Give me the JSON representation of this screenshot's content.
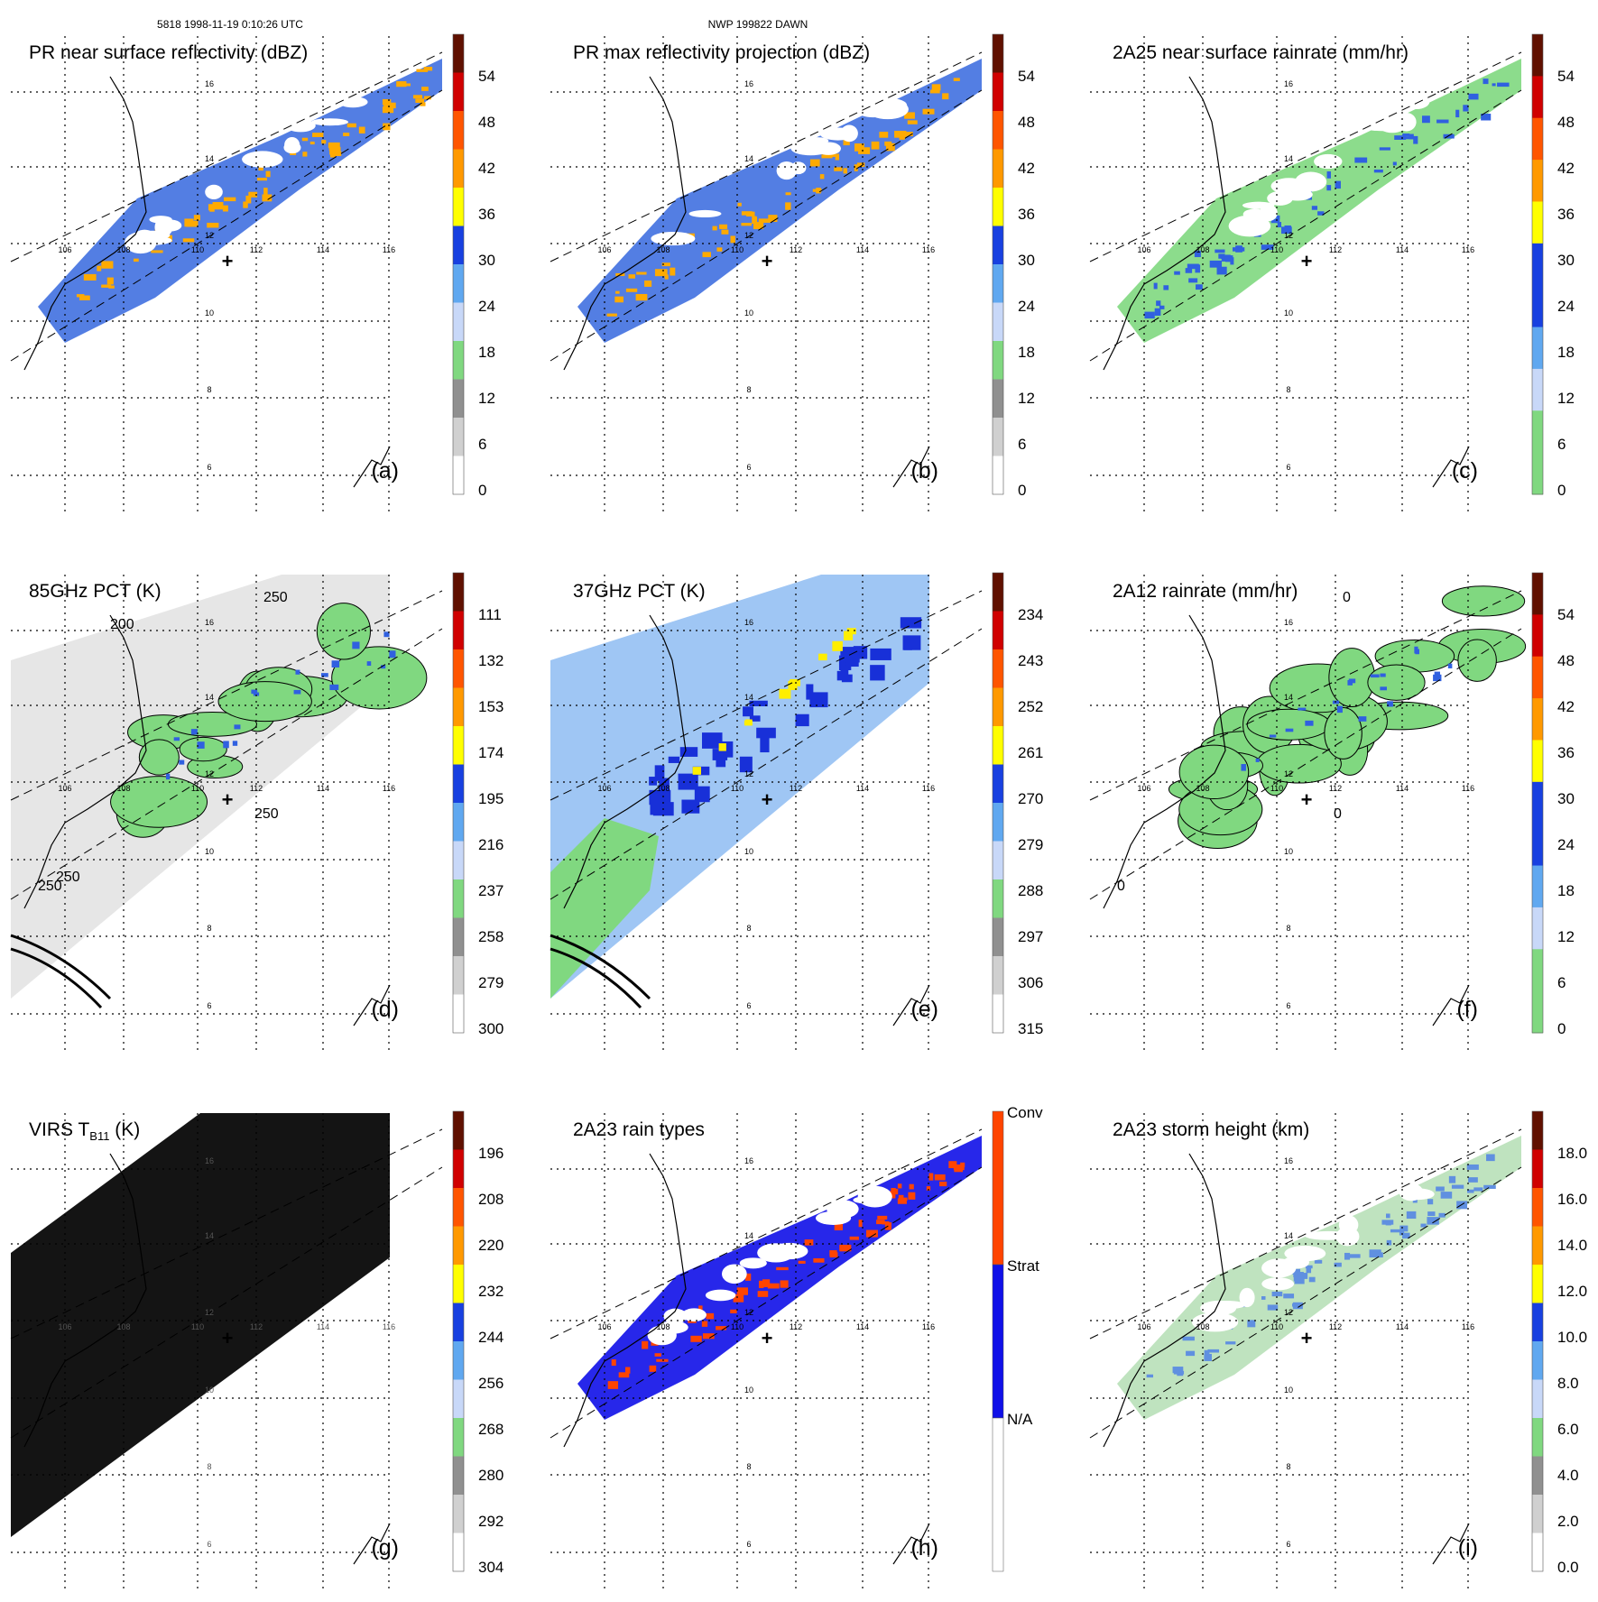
{
  "header": {
    "orbit_line": "5818 1998-11-19 0:10:26 UTC",
    "case_line": "NWP 199822 DAWN"
  },
  "map": {
    "lon_labels": [
      "106",
      "108",
      "110",
      "112",
      "114",
      "116"
    ],
    "lat_labels": [
      "16",
      "14",
      "12",
      "10",
      "8",
      "6"
    ],
    "center_marker": "+"
  },
  "chart_data": [
    {
      "type": "heatmap",
      "panel": "(a)",
      "title": "PR near surface reflectivity (dBZ)",
      "field": "swath",
      "colorbar": {
        "ticks": [
          "54",
          "48",
          "42",
          "36",
          "30",
          "24",
          "18",
          "12",
          "6",
          "0"
        ],
        "colors": [
          "#ffffff",
          "#d0d0d0",
          "#909090",
          "#80d880",
          "#c8d8f8",
          "#60a8f0",
          "#1840e0",
          "#ffff00",
          "#ff9900",
          "#ff5500",
          "#d00000",
          "#601000"
        ]
      },
      "contour_labels": []
    },
    {
      "type": "heatmap",
      "panel": "(b)",
      "title": "PR max reflectivity projection (dBZ)",
      "field": "swath",
      "colorbar": {
        "ticks": [
          "54",
          "48",
          "42",
          "36",
          "30",
          "24",
          "18",
          "12",
          "6",
          "0"
        ],
        "colors": [
          "#ffffff",
          "#d0d0d0",
          "#909090",
          "#80d880",
          "#c8d8f8",
          "#60a8f0",
          "#1840e0",
          "#ffff00",
          "#ff9900",
          "#ff5500",
          "#d00000",
          "#601000"
        ]
      },
      "contour_labels": []
    },
    {
      "type": "heatmap",
      "panel": "(c)",
      "title": "2A25 near surface rainrate (mm/hr)",
      "field": "swath",
      "colorbar": {
        "ticks": [
          "54",
          "48",
          "42",
          "36",
          "30",
          "24",
          "18",
          "12",
          "6",
          "0"
        ],
        "colors": [
          "#80d880",
          "#80d880",
          "#c8d8f8",
          "#60a8f0",
          "#1840e0",
          "#1840e0",
          "#ffff00",
          "#ff9900",
          "#ff5500",
          "#d00000",
          "#601000"
        ]
      },
      "contour_labels": []
    },
    {
      "type": "heatmap",
      "panel": "(d)",
      "title": "85GHz PCT (K)",
      "field": "wide",
      "colorbar": {
        "ticks": [
          "111",
          "132",
          "153",
          "174",
          "195",
          "216",
          "237",
          "258",
          "279",
          "300"
        ],
        "colors": [
          "#ffffff",
          "#d0d0d0",
          "#909090",
          "#80d880",
          "#c8d8f8",
          "#60a8f0",
          "#1840e0",
          "#ffff00",
          "#ff9900",
          "#ff5500",
          "#d00000",
          "#601000"
        ]
      },
      "contour_labels": [
        "250",
        "250",
        "250",
        "250",
        "200"
      ]
    },
    {
      "type": "heatmap",
      "panel": "(e)",
      "title": "37GHz PCT (K)",
      "field": "wide",
      "colorbar": {
        "ticks": [
          "234",
          "243",
          "252",
          "261",
          "270",
          "279",
          "288",
          "297",
          "306",
          "315"
        ],
        "colors": [
          "#ffffff",
          "#d0d0d0",
          "#909090",
          "#80d880",
          "#c8d8f8",
          "#60a8f0",
          "#1840e0",
          "#ffff00",
          "#ff9900",
          "#ff5500",
          "#d00000",
          "#601000"
        ]
      },
      "contour_labels": []
    },
    {
      "type": "heatmap",
      "panel": "(f)",
      "title": "2A12 rainrate (mm/hr)",
      "field": "wide",
      "colorbar": {
        "ticks": [
          "54",
          "48",
          "42",
          "36",
          "30",
          "24",
          "18",
          "12",
          "6",
          "0"
        ],
        "colors": [
          "#80d880",
          "#80d880",
          "#c8d8f8",
          "#60a8f0",
          "#1840e0",
          "#1840e0",
          "#ffff00",
          "#ff9900",
          "#ff5500",
          "#d00000",
          "#601000"
        ]
      },
      "contour_labels": [
        "0",
        "0",
        "0"
      ]
    },
    {
      "type": "heatmap",
      "panel": "(g)",
      "title": "VIRS T",
      "title_sub": "B11",
      "title_end": " (K)",
      "field": "virs",
      "colorbar": {
        "ticks": [
          "196",
          "208",
          "220",
          "232",
          "244",
          "256",
          "268",
          "280",
          "292",
          "304"
        ],
        "colors": [
          "#ffffff",
          "#d0d0d0",
          "#909090",
          "#80d880",
          "#c8d8f8",
          "#60a8f0",
          "#1840e0",
          "#ffff00",
          "#ff9900",
          "#ff5500",
          "#d00000",
          "#601000"
        ]
      },
      "contour_labels": []
    },
    {
      "type": "heatmap",
      "panel": "(h)",
      "title": "2A23 rain types",
      "field": "swath",
      "colorbar": {
        "categories": [
          "Conv",
          "Strat",
          "N/A"
        ],
        "colors": [
          "#ffffff",
          "#1010e8",
          "#ff4400"
        ]
      },
      "contour_labels": []
    },
    {
      "type": "heatmap",
      "panel": "(i)",
      "title": "2A23 storm height (km)",
      "field": "swath",
      "colorbar": {
        "ticks": [
          "18.0",
          "16.0",
          "14.0",
          "12.0",
          "10.0",
          "8.0",
          "6.0",
          "4.0",
          "2.0",
          "0.0"
        ],
        "colors": [
          "#ffffff",
          "#d0d0d0",
          "#909090",
          "#80d880",
          "#c8d8f8",
          "#60a8f0",
          "#1840e0",
          "#ffff00",
          "#ff9900",
          "#ff5500",
          "#d00000",
          "#601000"
        ]
      },
      "contour_labels": []
    }
  ]
}
